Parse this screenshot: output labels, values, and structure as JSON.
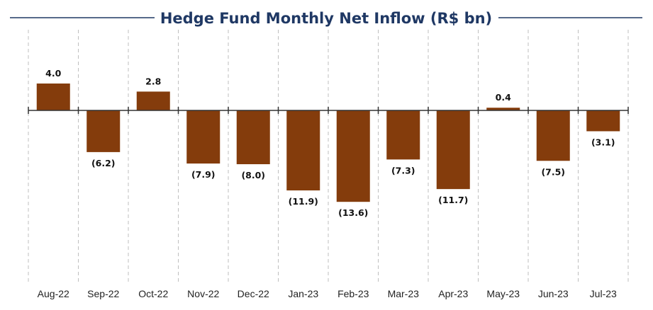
{
  "chart_data": {
    "type": "bar",
    "title": "Hedge Fund Monthly Net Inflow (R$ bn)",
    "xlabel": "",
    "ylabel": "",
    "categories": [
      "Aug-22",
      "Sep-22",
      "Oct-22",
      "Nov-22",
      "Dec-22",
      "Jan-23",
      "Feb-23",
      "Mar-23",
      "Apr-23",
      "May-23",
      "Jun-23",
      "Jul-23"
    ],
    "values": [
      4.0,
      -6.2,
      2.8,
      -7.9,
      -8.0,
      -11.9,
      -13.6,
      -7.3,
      -11.7,
      0.4,
      -7.5,
      -3.1
    ],
    "data_labels": [
      "4.0",
      "(6.2)",
      "2.8",
      "(7.9)",
      "(8.0)",
      "(11.9)",
      "(13.6)",
      "(7.3)",
      "(11.7)",
      "0.4",
      "(7.5)",
      "(3.1)"
    ],
    "ylim": [
      -16,
      6
    ],
    "grid": "vertical-dashed",
    "colors": {
      "bar": "#843C0C",
      "title": "#1F3864",
      "grid": "#BFBFBF",
      "axis": "#333333"
    }
  }
}
